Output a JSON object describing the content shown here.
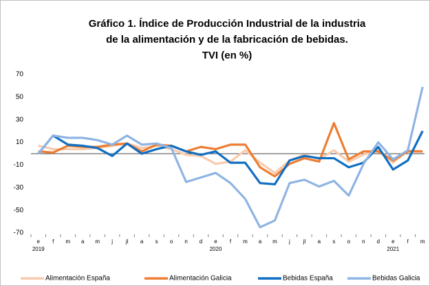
{
  "chart_data": {
    "type": "line",
    "title": [
      "Gráfico 1. Índice de Producción Industrial de la industria",
      "de la alimentación y de la fabricación de bebidas.",
      "TVI (en %)"
    ],
    "categories": [
      "e",
      "f",
      "m",
      "a",
      "m",
      "j",
      "jl",
      "a",
      "s",
      "o",
      "n",
      "d",
      "e",
      "f",
      "m",
      "a",
      "m",
      "j",
      "jl",
      "a",
      "s",
      "o",
      "n",
      "d",
      "e",
      "f",
      "m"
    ],
    "category_groups": [
      "2019",
      null,
      null,
      null,
      null,
      null,
      null,
      null,
      null,
      null,
      null,
      null,
      "2020",
      null,
      null,
      null,
      null,
      null,
      null,
      null,
      null,
      null,
      null,
      null,
      "2021",
      null,
      null
    ],
    "ylim": [
      -70,
      70
    ],
    "yticks": [
      -70,
      -50,
      -30,
      -10,
      10,
      30,
      50,
      70
    ],
    "grid": false,
    "legend": "bottom",
    "series": [
      {
        "name": "Alimentación España",
        "color": "#f8cbad",
        "values": [
          7,
          4,
          4,
          4,
          5,
          7,
          9,
          5,
          7,
          4,
          -1,
          -2,
          -9,
          -7,
          3,
          -8,
          -17,
          -6,
          -1,
          -5,
          3,
          -7,
          -1,
          4,
          -8,
          3,
          2
        ]
      },
      {
        "name": "Alimentación Galicia",
        "color": "#ed7d31",
        "values": [
          2,
          1,
          7,
          6,
          6,
          8,
          9,
          2,
          8,
          7,
          2,
          6,
          4,
          8,
          8,
          -12,
          -20,
          -9,
          -4,
          -7,
          27,
          -5,
          2,
          2,
          -6,
          2,
          2
        ]
      },
      {
        "name": "Bebidas España",
        "color": "#0f6ec2",
        "values": [
          0,
          16,
          8,
          7,
          5,
          -2,
          9,
          0,
          4,
          7,
          2,
          -1,
          2,
          -8,
          -8,
          -26,
          -27,
          -6,
          -2,
          -4,
          -4,
          -12,
          -8,
          6,
          -14,
          -6,
          20
        ]
      },
      {
        "name": "Bebidas Galicia",
        "color": "#8eb4e3",
        "values": [
          0,
          16,
          14,
          14,
          12,
          8,
          16,
          8,
          9,
          5,
          -25,
          -21,
          -17,
          -26,
          -40,
          -65,
          -59,
          -26,
          -23,
          -29,
          -24,
          -37,
          -9,
          10,
          -5,
          3,
          59
        ]
      }
    ]
  }
}
